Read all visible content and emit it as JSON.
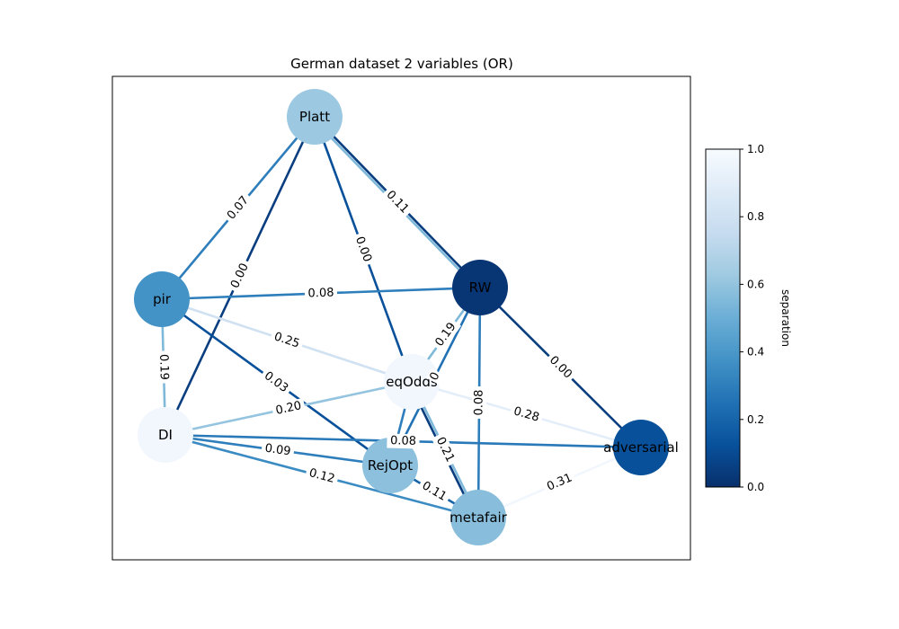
{
  "title": "German dataset 2 variables (OR)",
  "colorbar": {
    "label": "separation",
    "min": 0.0,
    "max": 1.0,
    "ticks": [
      "0.0",
      "0.2",
      "0.4",
      "0.6",
      "0.8",
      "1.0"
    ]
  },
  "nodes": [
    {
      "id": "Platt",
      "label": "Platt",
      "value": 0.62
    },
    {
      "id": "RW",
      "label": "RW",
      "value": 0.02
    },
    {
      "id": "pir",
      "label": "pir",
      "value": 0.38
    },
    {
      "id": "eqOdds",
      "label": "eqOdds",
      "value": 0.97
    },
    {
      "id": "DI",
      "label": "DI",
      "value": 0.97
    },
    {
      "id": "RejOpt",
      "label": "RejOpt",
      "value": 0.58
    },
    {
      "id": "metafair",
      "label": "metafair",
      "value": 0.57
    },
    {
      "id": "adversarial",
      "label": "adversarial",
      "value": 0.12
    }
  ],
  "edges": [
    {
      "source": "Platt",
      "target": "pir",
      "value": 0.3,
      "label": "0.07"
    },
    {
      "source": "Platt",
      "target": "RW",
      "value": 0.05,
      "label": "0.11"
    },
    {
      "source": "Platt",
      "target": "RW",
      "value": 0.55,
      "label": ""
    },
    {
      "source": "Platt",
      "target": "DI",
      "value": 0.05,
      "label": "0.00"
    },
    {
      "source": "Platt",
      "target": "eqOdds",
      "value": 0.12,
      "label": "0.00"
    },
    {
      "source": "pir",
      "target": "RW",
      "value": 0.3,
      "label": "0.08"
    },
    {
      "source": "pir",
      "target": "eqOdds",
      "value": 0.8,
      "label": "0.25"
    },
    {
      "source": "pir",
      "target": "DI",
      "value": 0.55,
      "label": "0.19"
    },
    {
      "source": "pir",
      "target": "RejOpt",
      "value": 0.12,
      "label": "0.03"
    },
    {
      "source": "RW",
      "target": "adversarial",
      "value": 0.05,
      "label": "0.00"
    },
    {
      "source": "RW",
      "target": "eqOdds",
      "value": 0.55,
      "label": "0.19"
    },
    {
      "source": "RW",
      "target": "RejOpt",
      "value": 0.25,
      "label": "0"
    },
    {
      "source": "RW",
      "target": "metafair",
      "value": 0.3,
      "label": "0.08"
    },
    {
      "source": "eqOdds",
      "target": "DI",
      "value": 0.6,
      "label": "0.20"
    },
    {
      "source": "eqOdds",
      "target": "adversarial",
      "value": 0.9,
      "label": "0.28"
    },
    {
      "source": "eqOdds",
      "target": "metafair",
      "value": 0.55,
      "label": "0.21"
    },
    {
      "source": "eqOdds",
      "target": "metafair",
      "value": 0.05,
      "label": ""
    },
    {
      "source": "eqOdds",
      "target": "RejOpt",
      "value": 0.3,
      "label": ""
    },
    {
      "source": "DI",
      "target": "adversarial",
      "value": 0.28,
      "label": "0.08"
    },
    {
      "source": "DI",
      "target": "RejOpt",
      "value": 0.3,
      "label": "0.09"
    },
    {
      "source": "DI",
      "target": "metafair",
      "value": 0.35,
      "label": "0.12"
    },
    {
      "source": "RejOpt",
      "target": "metafair",
      "value": 0.2,
      "label": "0.11"
    },
    {
      "source": "metafair",
      "target": "adversarial",
      "value": 0.97,
      "label": "0.31"
    }
  ]
}
